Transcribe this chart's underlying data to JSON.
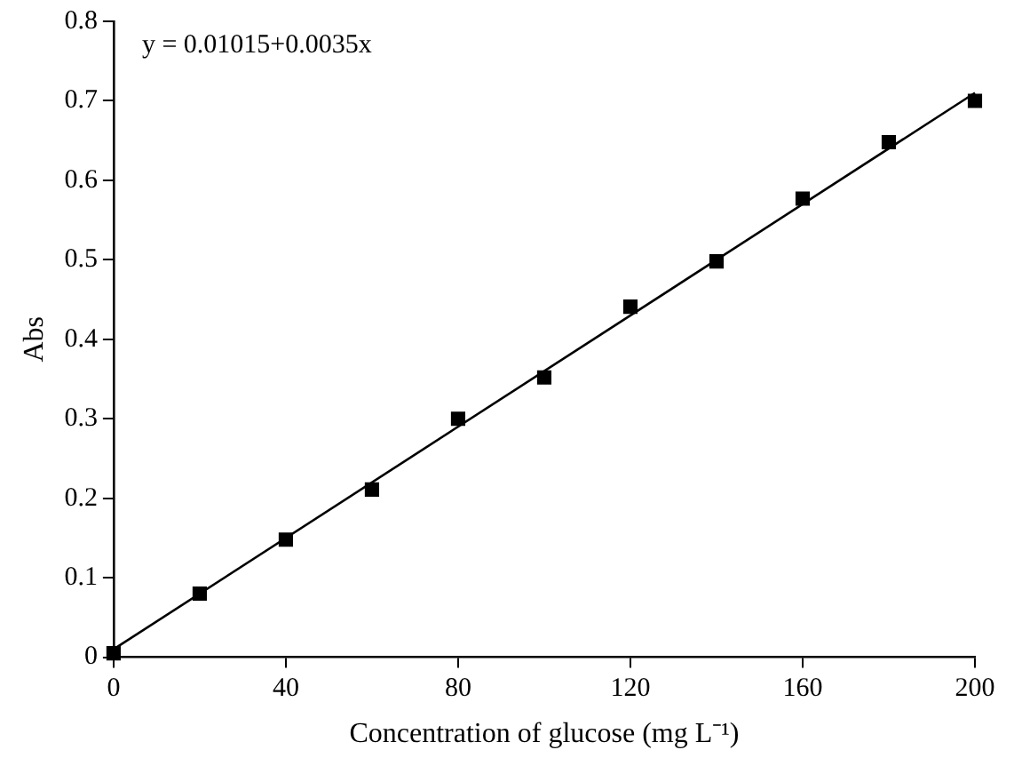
{
  "chart_data": {
    "type": "scatter",
    "xlabel": "Concentration of glucose (mg L⁻¹)",
    "ylabel": "Abs",
    "annotations": [
      "y = 0.01015+0.0035x"
    ],
    "series": [
      {
        "marker": "square",
        "color": "#000000",
        "x": [
          0,
          20,
          40,
          60,
          80,
          100,
          120,
          140,
          160,
          180,
          200
        ],
        "values": [
          0.005,
          0.08,
          0.148,
          0.211,
          0.3,
          0.352,
          0.441,
          0.498,
          0.577,
          0.648,
          0.7
        ]
      },
      {
        "type": "line",
        "marker": "none",
        "color": "#000000",
        "x": [
          0,
          200
        ],
        "values": [
          0.01,
          0.71
        ]
      }
    ],
    "xlim": [
      0,
      200
    ],
    "xticks": [
      0,
      40,
      80,
      120,
      160,
      200
    ],
    "ylim": [
      0,
      0.8
    ],
    "yticks": [
      0,
      0.1,
      0.2,
      0.3,
      0.4,
      0.5,
      0.6,
      0.7,
      0.8
    ],
    "grid": false,
    "legend": false
  }
}
